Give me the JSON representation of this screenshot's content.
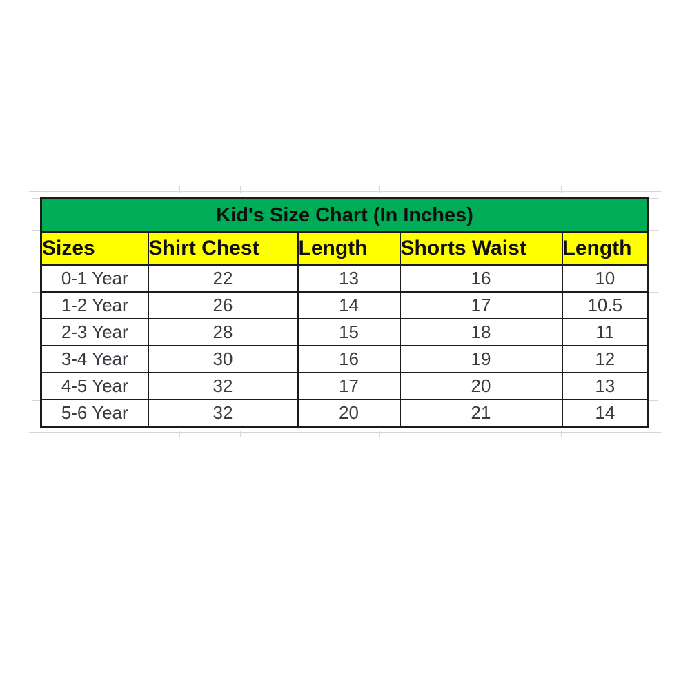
{
  "chart_data": {
    "type": "table",
    "title": "Kid's Size Chart (In Inches)",
    "columns": [
      "Sizes",
      "Shirt Chest",
      "Length",
      "Shorts Waist",
      "Length"
    ],
    "rows": [
      [
        "0-1 Year",
        "22",
        "13",
        "16",
        "10"
      ],
      [
        "1-2 Year",
        "26",
        "14",
        "17",
        "10.5"
      ],
      [
        "2-3 Year",
        "28",
        "15",
        "18",
        "11"
      ],
      [
        "3-4 Year",
        "30",
        "16",
        "19",
        "12"
      ],
      [
        "4-5 Year",
        "32",
        "17",
        "20",
        "13"
      ],
      [
        "5-6 Year",
        "32",
        "20",
        "21",
        "14"
      ]
    ],
    "layout_hints": {
      "title_row_background": "green",
      "header_row_background": "yellow",
      "grid_on": true,
      "units": "inches"
    }
  },
  "colors": {
    "title_bg": "#00ac55",
    "header_bg": "#ffff00",
    "border": "#1b1b1b",
    "heading_text": "#101010",
    "data_text": "#3a3a42",
    "gridline": "#d6d6d6"
  }
}
